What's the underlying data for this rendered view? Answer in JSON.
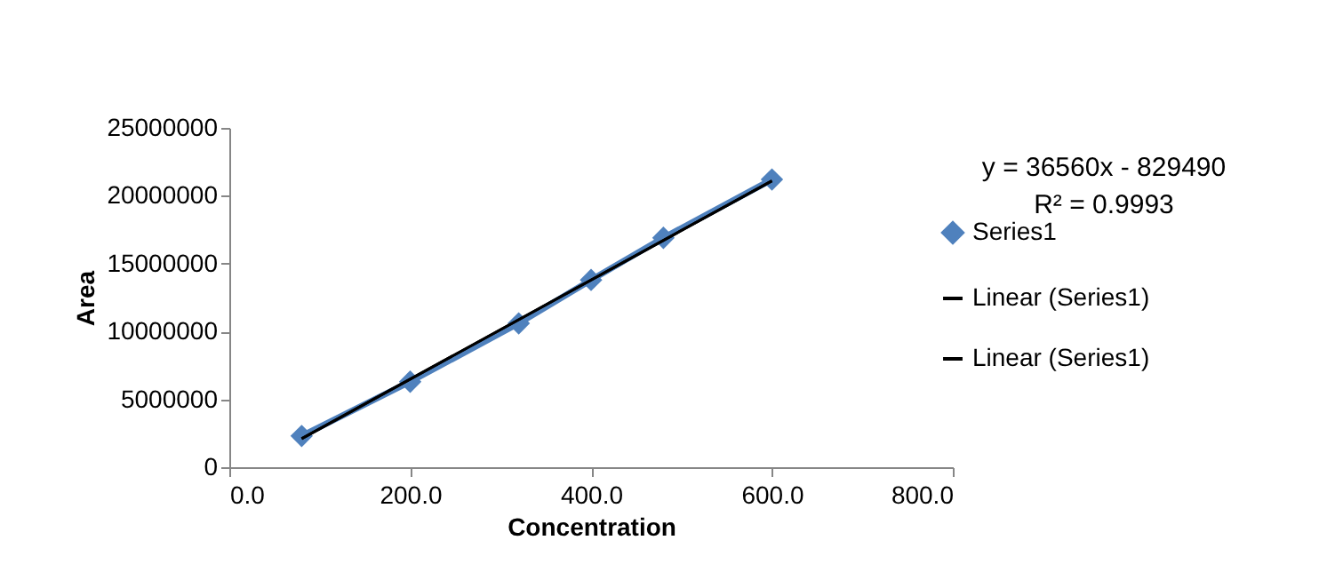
{
  "chart_data": {
    "type": "line",
    "xlabel": "Concentration",
    "ylabel": "Area",
    "annotations": [
      "y = 36560x - 829490",
      "R² = 0.9993"
    ],
    "xlim": [
      0,
      800
    ],
    "xticks": [
      {
        "value": 0,
        "label": "0.0"
      },
      {
        "value": 200,
        "label": "200.0"
      },
      {
        "value": 400,
        "label": "400.0"
      },
      {
        "value": 600,
        "label": "600.0"
      },
      {
        "value": 800,
        "label": "800.0"
      }
    ],
    "ylim": [
      0,
      25000000
    ],
    "yticks": [
      0,
      5000000,
      10000000,
      15000000,
      20000000,
      25000000
    ],
    "grid": false,
    "legend": "right",
    "series": [
      {
        "name": "Series1",
        "type": "line",
        "marker": "diamond",
        "color": "#4f81bd",
        "x": [
          80,
          200,
          320,
          400,
          480,
          600
        ],
        "values": [
          2300000,
          6300000,
          10600000,
          13800000,
          16900000,
          21200000
        ]
      },
      {
        "name": "Linear (Series1)",
        "type": "line",
        "marker": "none",
        "color": "#000000",
        "x": [
          80,
          600
        ],
        "values": [
          2100000,
          21100000
        ]
      },
      {
        "name": "Linear (Series1)",
        "type": "line",
        "marker": "none",
        "color": "#000000",
        "x": [
          80,
          600
        ],
        "values": [
          2100000,
          21100000
        ]
      }
    ]
  }
}
